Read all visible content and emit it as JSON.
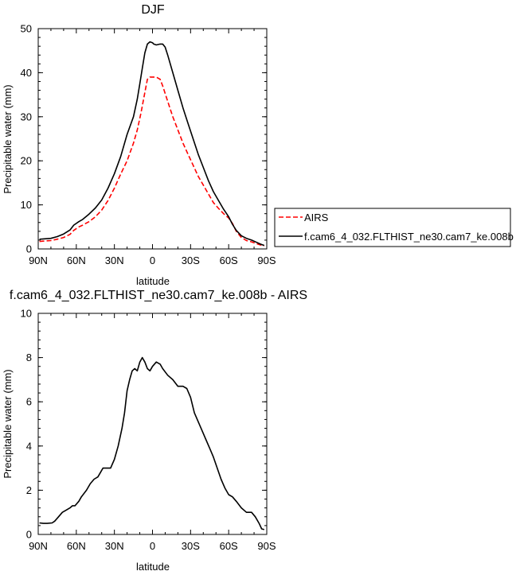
{
  "chart_data": [
    {
      "type": "line",
      "title": "DJF",
      "xlabel": "latitude",
      "ylabel": "Precipitable water (mm)",
      "xlim": [
        90,
        -90
      ],
      "ylim": [
        0,
        50
      ],
      "x_ticks": [
        90,
        60,
        30,
        0,
        -30,
        -60,
        -90
      ],
      "x_tick_labels": [
        "90N",
        "60N",
        "30N",
        "0",
        "30S",
        "60S",
        "90S"
      ],
      "y_ticks": [
        0,
        10,
        20,
        30,
        40,
        50
      ],
      "y_tick_labels": [
        "0",
        "10",
        "20",
        "30",
        "40",
        "50"
      ],
      "legend_position": "right",
      "series": [
        {
          "name": "AIRS",
          "color": "#ff0000",
          "dash": "dashed",
          "points": [
            [
              89,
              1.7
            ],
            [
              85,
              1.8
            ],
            [
              80,
              1.9
            ],
            [
              75,
              2.2
            ],
            [
              70,
              2.6
            ],
            [
              65,
              3.3
            ],
            [
              62,
              4.2
            ],
            [
              58,
              5.0
            ],
            [
              55,
              5.4
            ],
            [
              50,
              6.2
            ],
            [
              45,
              7.3
            ],
            [
              40,
              8.8
            ],
            [
              35,
              11.0
            ],
            [
              30,
              13.8
            ],
            [
              25,
              17.0
            ],
            [
              20,
              20.0
            ],
            [
              15,
              24.0
            ],
            [
              12,
              27.0
            ],
            [
              9,
              31.0
            ],
            [
              6,
              35.5
            ],
            [
              4,
              38.5
            ],
            [
              2,
              39.0
            ],
            [
              0,
              39.0
            ],
            [
              -3,
              39.0
            ],
            [
              -6,
              38.5
            ],
            [
              -8,
              37.0
            ],
            [
              -12,
              33.5
            ],
            [
              -16,
              30.0
            ],
            [
              -20,
              27.0
            ],
            [
              -24,
              24.0
            ],
            [
              -28,
              21.5
            ],
            [
              -32,
              19.0
            ],
            [
              -36,
              16.5
            ],
            [
              -40,
              14.5
            ],
            [
              -44,
              12.5
            ],
            [
              -48,
              10.5
            ],
            [
              -52,
              9.2
            ],
            [
              -56,
              8.0
            ],
            [
              -60,
              7.0
            ],
            [
              -63,
              5.8
            ],
            [
              -66,
              4.0
            ],
            [
              -70,
              2.6
            ],
            [
              -74,
              1.9
            ],
            [
              -78,
              1.6
            ],
            [
              -82,
              1.2
            ],
            [
              -85,
              0.9
            ],
            [
              -88,
              0.7
            ]
          ]
        },
        {
          "name": "f.cam6_4_032.FLTHIST_ne30.cam7_ke.008b",
          "color": "#000000",
          "dash": "solid",
          "points": [
            [
              89,
              2.2
            ],
            [
              85,
              2.3
            ],
            [
              80,
              2.4
            ],
            [
              75,
              2.8
            ],
            [
              70,
              3.4
            ],
            [
              65,
              4.3
            ],
            [
              62,
              5.4
            ],
            [
              58,
              6.2
            ],
            [
              55,
              6.7
            ],
            [
              50,
              7.9
            ],
            [
              45,
              9.3
            ],
            [
              40,
              11.1
            ],
            [
              35,
              13.8
            ],
            [
              30,
              17.1
            ],
            [
              25,
              21.0
            ],
            [
              20,
              26.0
            ],
            [
              15,
              30.0
            ],
            [
              12,
              34.0
            ],
            [
              10,
              37.5
            ],
            [
              8,
              41.0
            ],
            [
              6,
              44.5
            ],
            [
              4,
              46.5
            ],
            [
              2,
              47.0
            ],
            [
              0,
              46.8
            ],
            [
              -1,
              46.5
            ],
            [
              -3,
              46.3
            ],
            [
              -6,
              46.5
            ],
            [
              -8,
              46.5
            ],
            [
              -10,
              45.8
            ],
            [
              -12,
              44.0
            ],
            [
              -16,
              40.0
            ],
            [
              -20,
              36.0
            ],
            [
              -24,
              32.0
            ],
            [
              -28,
              28.5
            ],
            [
              -32,
              25.0
            ],
            [
              -36,
              21.5
            ],
            [
              -40,
              18.5
            ],
            [
              -44,
              15.5
            ],
            [
              -48,
              13.0
            ],
            [
              -52,
              11.0
            ],
            [
              -56,
              9.0
            ],
            [
              -60,
              7.3
            ],
            [
              -63,
              5.6
            ],
            [
              -66,
              4.2
            ],
            [
              -70,
              3.0
            ],
            [
              -74,
              2.4
            ],
            [
              -78,
              2.0
            ],
            [
              -82,
              1.5
            ],
            [
              -85,
              1.1
            ],
            [
              -88,
              0.8
            ]
          ]
        }
      ]
    },
    {
      "type": "line",
      "title": "f.cam6_4_032.FLTHIST_ne30.cam7_ke.008b - AIRS",
      "xlabel": "latitude",
      "ylabel": "Precipitable water (mm)",
      "xlim": [
        90,
        -90
      ],
      "ylim": [
        0,
        10
      ],
      "x_ticks": [
        90,
        60,
        30,
        0,
        -30,
        -60,
        -90
      ],
      "x_tick_labels": [
        "90N",
        "60N",
        "30N",
        "0",
        "30S",
        "60S",
        "90S"
      ],
      "y_ticks": [
        0,
        2,
        4,
        6,
        8,
        10
      ],
      "y_tick_labels": [
        "0",
        "2",
        "4",
        "6",
        "8",
        "10"
      ],
      "series": [
        {
          "color": "#000000",
          "dash": "solid",
          "points": [
            [
              89,
              0.52
            ],
            [
              86,
              0.5
            ],
            [
              83,
              0.5
            ],
            [
              79,
              0.52
            ],
            [
              77,
              0.6
            ],
            [
              74,
              0.8
            ],
            [
              71,
              1.0
            ],
            [
              68,
              1.1
            ],
            [
              65,
              1.2
            ],
            [
              63,
              1.3
            ],
            [
              61,
              1.3
            ],
            [
              58,
              1.5
            ],
            [
              56,
              1.7
            ],
            [
              52,
              2.0
            ],
            [
              49,
              2.3
            ],
            [
              46,
              2.5
            ],
            [
              43,
              2.6
            ],
            [
              41,
              2.8
            ],
            [
              39,
              3.0
            ],
            [
              36,
              3.0
            ],
            [
              33,
              3.0
            ],
            [
              30,
              3.4
            ],
            [
              27,
              4.0
            ],
            [
              24,
              4.8
            ],
            [
              22,
              5.5
            ],
            [
              20,
              6.5
            ],
            [
              18,
              7.0
            ],
            [
              16,
              7.4
            ],
            [
              14,
              7.5
            ],
            [
              12,
              7.4
            ],
            [
              10,
              7.8
            ],
            [
              8,
              8.0
            ],
            [
              6,
              7.8
            ],
            [
              4,
              7.5
            ],
            [
              2,
              7.4
            ],
            [
              0,
              7.6
            ],
            [
              -3,
              7.8
            ],
            [
              -6,
              7.7
            ],
            [
              -8,
              7.5
            ],
            [
              -12,
              7.2
            ],
            [
              -16,
              7.0
            ],
            [
              -20,
              6.7
            ],
            [
              -24,
              6.7
            ],
            [
              -27,
              6.6
            ],
            [
              -30,
              6.2
            ],
            [
              -33,
              5.5
            ],
            [
              -36,
              5.1
            ],
            [
              -39,
              4.7
            ],
            [
              -42,
              4.3
            ],
            [
              -45,
              3.9
            ],
            [
              -48,
              3.5
            ],
            [
              -51,
              3.0
            ],
            [
              -54,
              2.5
            ],
            [
              -57,
              2.1
            ],
            [
              -60,
              1.8
            ],
            [
              -63,
              1.7
            ],
            [
              -66,
              1.5
            ],
            [
              -70,
              1.2
            ],
            [
              -74,
              1.0
            ],
            [
              -78,
              1.0
            ],
            [
              -81,
              0.8
            ],
            [
              -84,
              0.5
            ],
            [
              -86,
              0.25
            ],
            [
              -88,
              0.22
            ]
          ]
        }
      ]
    }
  ]
}
